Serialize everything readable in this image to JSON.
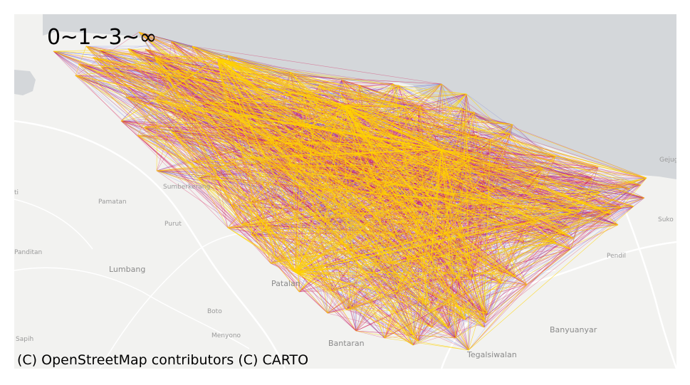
{
  "overlay_title": "0~1~3~∞",
  "attribution": "(C) OpenStreetMap contributors (C) CARTO",
  "place_labels": {
    "gejug": "Gejug",
    "suko": "Suko",
    "pendil": "Pendil",
    "banyuanyar": "Banyuanyar",
    "tegalsiwalan": "Tegalsiwalan",
    "bantaran": "Bantaran",
    "menyono": "Menyono",
    "boto": "Boto",
    "sapih": "Sapih",
    "lumbang": "Lumbang",
    "panditan": "Panditan",
    "purut": "Purut",
    "pamatan": "Pamatan",
    "sumberkerang": "Sumberkerang",
    "patalan": "Patalan",
    "ti": "ti"
  },
  "colors": {
    "sea": "#d4d7da",
    "land": "#f2f2f0",
    "road": "#ffffff",
    "edge_level_1": "#3b48e0",
    "edge_level_2": "#d81e5b",
    "edge_level_3": "#ffd400"
  },
  "edge_classes": [
    "0~1",
    "1~3",
    "3~∞"
  ]
}
